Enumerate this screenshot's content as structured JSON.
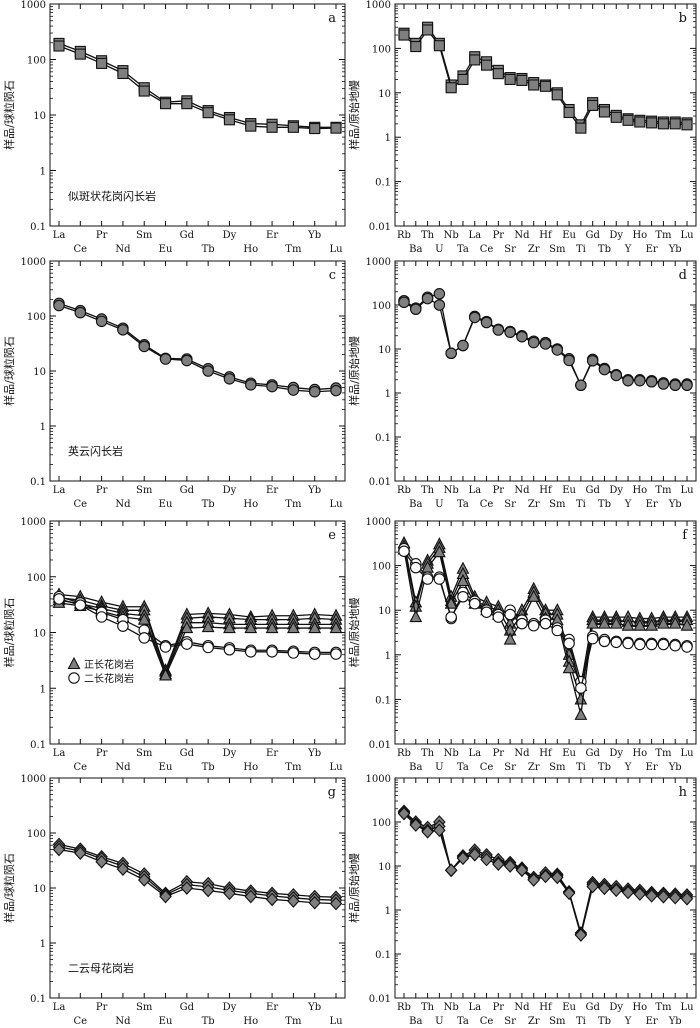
{
  "colors": {
    "symbol_fill": "#7f7f7f",
    "line": "#111111",
    "axis": "#111111",
    "open_fill": "#ffffff"
  },
  "ylabels": {
    "chondrite": "样品/球粒陨石",
    "mantle": "样品/原始地幔"
  },
  "yticks": {
    "ree": [
      "1000",
      "100",
      "10",
      "1",
      "0.1"
    ],
    "spider": [
      "1000",
      "100",
      "10",
      "1",
      "0.1",
      "0.01"
    ]
  },
  "legend_e": {
    "syenogranite": "正长花岗岩",
    "two_feldspar": "二长花岗岩"
  },
  "chart_data": [
    {
      "id": "a",
      "panel_label": "a",
      "type": "line",
      "yscale": "log",
      "ylim": [
        0.1,
        1000
      ],
      "ylabel": "样品/球粒陨石",
      "rock_label": "似斑状花岗闪长岩",
      "marker": "square",
      "categories": [
        "La",
        "Ce",
        "Pr",
        "Nd",
        "Sm",
        "Eu",
        "Gd",
        "Tb",
        "Dy",
        "Ho",
        "Er",
        "Tm",
        "Yb",
        "Lu"
      ],
      "series": [
        {
          "values": [
            195,
            140,
            95,
            63,
            31,
            17,
            18,
            12,
            9,
            7,
            6.8,
            6.4,
            6.0,
            6.0
          ]
        },
        {
          "values": [
            175,
            125,
            85,
            56,
            27,
            16,
            16,
            11,
            8.2,
            6.3,
            6.0,
            6.0,
            5.7,
            5.8
          ]
        }
      ]
    },
    {
      "id": "b",
      "panel_label": "b",
      "type": "line",
      "yscale": "log",
      "ylim": [
        0.01,
        1000
      ],
      "ylabel": "样品/原始地幔",
      "rock_label": "",
      "marker": "square",
      "categories": [
        "Rb",
        "Ba",
        "Th",
        "U",
        "Nb",
        "Ta",
        "La",
        "Ce",
        "Pr",
        "Sr",
        "Nd",
        "Zr",
        "Hf",
        "Sm",
        "Eu",
        "Ti",
        "Gd",
        "Tb",
        "Dy",
        "Y",
        "Ho",
        "Er",
        "Tm",
        "Yb",
        "Lu"
      ],
      "series": [
        {
          "values": [
            220,
            130,
            300,
            130,
            15,
            24,
            65,
            50,
            32,
            22,
            21,
            17,
            15,
            10,
            4.2,
            1.9,
            6.0,
            4.2,
            3.1,
            2.6,
            2.4,
            2.3,
            2.2,
            2.2,
            2.1
          ]
        },
        {
          "values": [
            200,
            110,
            260,
            115,
            13,
            20,
            55,
            42,
            27,
            20,
            19,
            15,
            14,
            9,
            3.6,
            1.6,
            5.2,
            3.7,
            2.8,
            2.4,
            2.2,
            2.1,
            2.0,
            2.0,
            1.9
          ]
        }
      ]
    },
    {
      "id": "c",
      "panel_label": "c",
      "type": "line",
      "yscale": "log",
      "ylim": [
        0.1,
        1000
      ],
      "ylabel": "样品/球粒陨石",
      "rock_label": "英云闪长岩",
      "marker": "circle",
      "categories": [
        "La",
        "Ce",
        "Pr",
        "Nd",
        "Sm",
        "Eu",
        "Gd",
        "Tb",
        "Dy",
        "Ho",
        "Er",
        "Tm",
        "Yb",
        "Lu"
      ],
      "series": [
        {
          "values": [
            170,
            125,
            88,
            60,
            30,
            17,
            16.5,
            11,
            7.8,
            6,
            5.6,
            5,
            4.6,
            4.9
          ]
        },
        {
          "values": [
            155,
            115,
            80,
            56,
            28,
            16.5,
            15.5,
            10,
            7.2,
            5.6,
            5.2,
            4.5,
            4.2,
            4.4
          ]
        }
      ]
    },
    {
      "id": "d",
      "panel_label": "d",
      "type": "line",
      "yscale": "log",
      "ylim": [
        0.01,
        1000
      ],
      "ylabel": "样品/原始地幔",
      "rock_label": "",
      "marker": "circle",
      "categories": [
        "Rb",
        "Ba",
        "Th",
        "U",
        "Nb",
        "Ta",
        "La",
        "Ce",
        "Pr",
        "Sr",
        "Nd",
        "Zr",
        "Hf",
        "Sm",
        "Eu",
        "Ti",
        "Gd",
        "Tb",
        "Dy",
        "Y",
        "Ho",
        "Er",
        "Tm",
        "Yb",
        "Lu"
      ],
      "series": [
        {
          "values": [
            125,
            85,
            150,
            180,
            8,
            12,
            55,
            42,
            28,
            25,
            20,
            15,
            14,
            10,
            6,
            1.5,
            5.8,
            3.6,
            2.6,
            2.0,
            2.0,
            1.9,
            1.7,
            1.6,
            1.6
          ]
        },
        {
          "values": [
            115,
            80,
            140,
            100,
            8,
            12,
            52,
            40,
            27,
            24,
            19,
            14,
            13,
            9.5,
            5.5,
            1.5,
            5.4,
            3.4,
            2.5,
            1.9,
            1.9,
            1.8,
            1.6,
            1.5,
            1.5
          ]
        }
      ]
    },
    {
      "id": "e",
      "panel_label": "e",
      "type": "line",
      "yscale": "log",
      "ylim": [
        0.1,
        1000
      ],
      "ylabel": "样品/球粒陨石",
      "rock_label": "",
      "categories": [
        "La",
        "Ce",
        "Pr",
        "Nd",
        "Sm",
        "Eu",
        "Gd",
        "Tb",
        "Dy",
        "Ho",
        "Er",
        "Tm",
        "Yb",
        "Lu"
      ],
      "series": [
        {
          "marker": "triangle",
          "values": [
            48,
            44,
            35,
            29,
            29,
            2.1,
            21,
            22,
            21,
            19,
            20,
            20,
            21,
            20
          ]
        },
        {
          "marker": "triangle",
          "values": [
            42,
            38,
            30,
            25,
            25,
            2.0,
            18,
            19,
            18,
            17,
            17,
            17,
            18,
            17
          ]
        },
        {
          "marker": "triangle",
          "values": [
            38,
            33,
            27,
            22,
            20,
            1.8,
            15,
            15,
            14,
            14,
            14,
            14,
            14,
            14
          ]
        },
        {
          "marker": "triangle",
          "values": [
            34,
            30,
            24,
            19,
            17,
            1.7,
            12,
            12.5,
            12,
            12,
            12,
            12,
            12,
            12
          ]
        },
        {
          "marker": "circle",
          "values": [
            44,
            34,
            23,
            17,
            11,
            5.8,
            6.8,
            5.8,
            5.3,
            4.8,
            4.8,
            4.6,
            4.4,
            4.4
          ]
        },
        {
          "marker": "circle",
          "values": [
            40,
            31,
            19,
            13,
            8,
            5.5,
            6.2,
            5.4,
            4.9,
            4.5,
            4.5,
            4.3,
            4.1,
            4.1
          ]
        }
      ]
    },
    {
      "id": "f",
      "panel_label": "f",
      "type": "line",
      "yscale": "log",
      "ylim": [
        0.01,
        1000
      ],
      "ylabel": "样品/原始地幔",
      "rock_label": "",
      "categories": [
        "Rb",
        "Ba",
        "Th",
        "U",
        "Nb",
        "Ta",
        "La",
        "Ce",
        "Pr",
        "Sr",
        "Nd",
        "Zr",
        "Hf",
        "Sm",
        "Eu",
        "Ti",
        "Gd",
        "Tb",
        "Dy",
        "Y",
        "Ho",
        "Er",
        "Tm",
        "Yb",
        "Lu"
      ],
      "series": [
        {
          "marker": "triangle",
          "values": [
            320,
            15,
            130,
            300,
            20,
            85,
            20,
            15,
            12,
            5,
            10,
            30,
            10,
            10,
            1,
            0.2,
            7,
            7,
            7,
            7,
            6.5,
            6.5,
            7,
            7,
            7
          ]
        },
        {
          "marker": "triangle",
          "values": [
            270,
            12,
            110,
            250,
            16,
            65,
            17,
            12,
            10,
            3.5,
            8,
            25,
            8.5,
            8,
            0.7,
            0.1,
            6,
            6,
            6,
            5.5,
            5.5,
            5.5,
            6,
            6,
            6
          ]
        },
        {
          "marker": "triangle",
          "values": [
            230,
            7,
            90,
            200,
            14,
            45,
            14,
            10,
            8,
            2.2,
            6,
            20,
            6.5,
            6,
            0.5,
            0.045,
            5,
            5,
            5,
            4.5,
            4.5,
            4.5,
            5,
            5,
            4.5
          ]
        },
        {
          "marker": "circle",
          "values": [
            240,
            110,
            55,
            55,
            6.5,
            25,
            16,
            10,
            8,
            10,
            6,
            5,
            6,
            4,
            2.2,
            0.25,
            2.6,
            2.2,
            2.0,
            1.9,
            1.8,
            1.8,
            1.8,
            1.7,
            1.6
          ]
        },
        {
          "marker": "circle",
          "values": [
            210,
            90,
            50,
            50,
            7,
            20,
            14,
            9,
            7,
            8,
            5,
            4.5,
            5,
            3.5,
            1.8,
            0.18,
            2.3,
            2.0,
            1.9,
            1.8,
            1.7,
            1.7,
            1.7,
            1.6,
            1.5
          ]
        }
      ]
    },
    {
      "id": "g",
      "panel_label": "g",
      "type": "line",
      "yscale": "log",
      "ylim": [
        0.1,
        1000
      ],
      "ylabel": "样品/球粒陨石",
      "rock_label": "二云母花岗岩",
      "marker": "diamond",
      "categories": [
        "La",
        "Ce",
        "Pr",
        "Nd",
        "Sm",
        "Eu",
        "Gd",
        "Tb",
        "Dy",
        "Ho",
        "Er",
        "Tm",
        "Yb",
        "Lu"
      ],
      "series": [
        {
          "values": [
            62,
            51,
            37,
            28,
            18,
            8,
            13,
            12,
            10,
            8.8,
            8,
            7.5,
            7,
            6.8
          ]
        },
        {
          "values": [
            56,
            47,
            34,
            25,
            16,
            7.5,
            11.5,
            10.5,
            9,
            8,
            7.2,
            6.6,
            6.2,
            6.0
          ]
        },
        {
          "values": [
            50,
            43,
            30,
            22,
            14,
            7,
            10,
            9,
            8,
            7,
            6.2,
            5.8,
            5.4,
            5.2
          ]
        }
      ]
    },
    {
      "id": "h",
      "panel_label": "h",
      "type": "line",
      "yscale": "log",
      "ylim": [
        0.01,
        1000
      ],
      "ylabel": "样品/原始地幔",
      "rock_label": "",
      "marker": "diamond",
      "categories": [
        "Rb",
        "Ba",
        "Th",
        "U",
        "Nb",
        "Ta",
        "La",
        "Ce",
        "Pr",
        "Sr",
        "Nd",
        "Zr",
        "Hf",
        "Sm",
        "Eu",
        "Ti",
        "Gd",
        "Tb",
        "Dy",
        "Y",
        "Ho",
        "Er",
        "Tm",
        "Yb",
        "Lu"
      ],
      "series": [
        {
          "values": [
            175,
            100,
            75,
            100,
            8,
            17,
            23,
            18,
            14,
            12,
            9,
            5.5,
            7,
            6.5,
            2.6,
            0.3,
            4.2,
            3.8,
            3.4,
            3.0,
            2.8,
            2.5,
            2.4,
            2.3,
            2.2
          ]
        },
        {
          "values": [
            165,
            90,
            65,
            80,
            8,
            16,
            20,
            16,
            12,
            11,
            8.5,
            5,
            6.2,
            6,
            2.5,
            0.28,
            3.8,
            3.4,
            3.0,
            2.7,
            2.5,
            2.3,
            2.2,
            2.1,
            2.0
          ]
        },
        {
          "values": [
            155,
            85,
            60,
            65,
            8,
            15,
            18,
            14,
            11,
            10,
            8,
            4.8,
            5.8,
            5.5,
            2.4,
            0.27,
            3.4,
            3.1,
            2.8,
            2.5,
            2.3,
            2.1,
            2.0,
            1.9,
            1.8
          ]
        }
      ]
    }
  ]
}
